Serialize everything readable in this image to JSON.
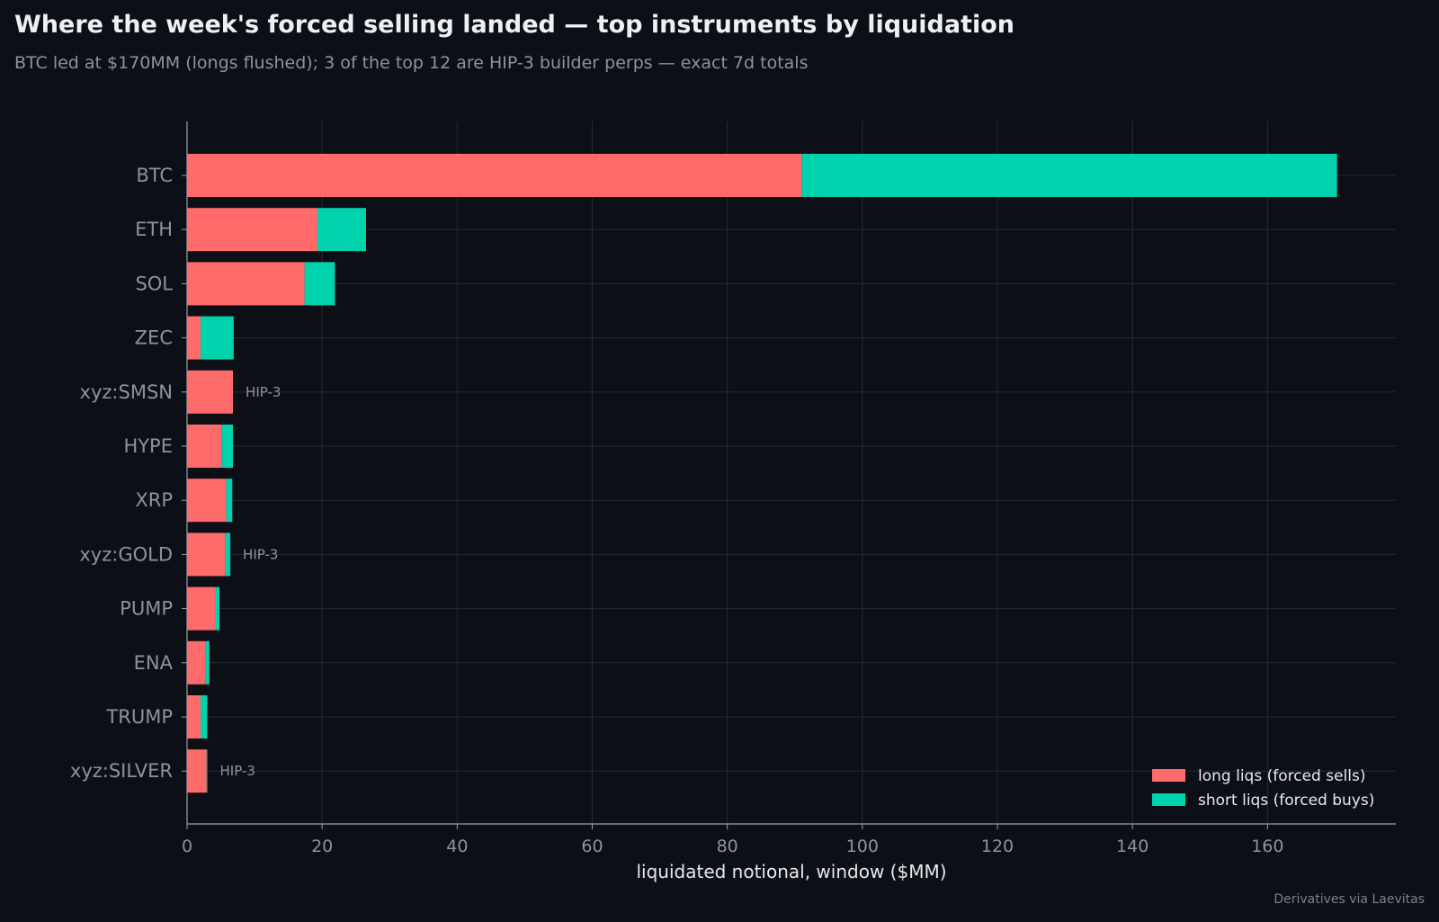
{
  "title": "Where the week's forced selling landed — top instruments by liquidation",
  "subtitle": "BTC led at $170MM (longs flushed); 3 of the top 12 are HIP-3 builder perps — exact 7d totals",
  "credit": "Derivatives via Laevitas",
  "chart_data": {
    "type": "bar",
    "orientation": "horizontal",
    "stacked": true,
    "categories": [
      "BTC",
      "ETH",
      "SOL",
      "ZEC",
      "xyz:SMSN",
      "HYPE",
      "XRP",
      "xyz:GOLD",
      "PUMP",
      "ENA",
      "TRUMP",
      "xyz:SILVER"
    ],
    "series": [
      {
        "name": "long liqs (forced sells)",
        "color": "#ff6b6b",
        "values": [
          91.0,
          19.3,
          17.4,
          2.0,
          6.8,
          5.1,
          5.8,
          5.7,
          4.2,
          2.7,
          2.0,
          2.9
        ]
      },
      {
        "name": "short liqs (forced buys)",
        "color": "#00d2ae",
        "values": [
          79.3,
          7.2,
          4.5,
          4.9,
          0.0,
          1.7,
          0.9,
          0.7,
          0.6,
          0.6,
          1.0,
          0.1
        ]
      }
    ],
    "annotations": [
      {
        "category": "xyz:SMSN",
        "text": "HIP-3"
      },
      {
        "category": "xyz:GOLD",
        "text": "HIP-3"
      },
      {
        "category": "xyz:SILVER",
        "text": "HIP-3"
      }
    ],
    "xlabel": "liquidated notional, window ($MM)",
    "ylabel": "",
    "xlim": [
      0,
      179
    ],
    "xticks": [
      0,
      20,
      40,
      60,
      80,
      100,
      120,
      140,
      160
    ],
    "grid": true,
    "legend": "bottom-right"
  }
}
